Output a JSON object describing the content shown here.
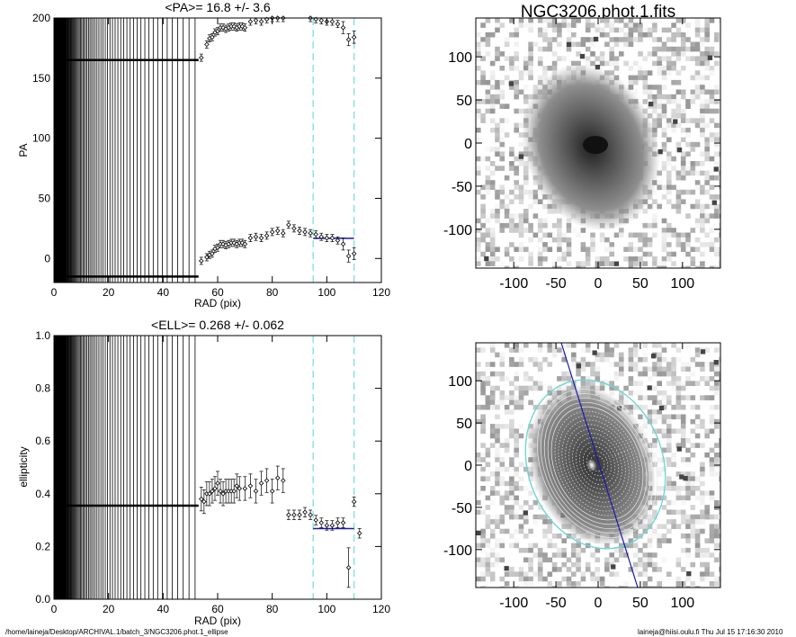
{
  "footer": {
    "path": "/home/laineja/Desktop/ARCHIVAL.1/batch_3/NGC3206.phot.1_ellipse",
    "user_date": "laineja@hiisi.oulu.fi  Thu Jul 15 17:16:30 2010"
  },
  "colors": {
    "fit_line": "#1a1aa8",
    "limit_line": "#7fe0d8",
    "ellipse": "#6fd6d6"
  },
  "chart_data": [
    {
      "type": "scatter",
      "title": "<PA>=  16.8 +/-   3.6",
      "xlabel": "RAD (pix)",
      "ylabel": "PA",
      "xlim": [
        0,
        120
      ],
      "ylim": [
        -20,
        200
      ],
      "xticks": [
        "0",
        "20",
        "40",
        "60",
        "80",
        "100",
        "120"
      ],
      "yticks": [
        "0",
        "50",
        "100",
        "150",
        "200"
      ],
      "mean_fit": {
        "y": 16.8,
        "x_range": [
          95,
          110
        ]
      },
      "limit_lines": [
        95,
        110
      ],
      "series": [
        {
          "points": [
            [
              54,
              -2
            ],
            [
              56,
              1
            ],
            [
              57,
              3
            ],
            [
              58,
              4
            ],
            [
              59,
              8
            ],
            [
              60,
              9
            ],
            [
              61,
              12
            ],
            [
              62,
              12
            ],
            [
              63,
              11
            ],
            [
              64,
              12
            ],
            [
              65,
              13
            ],
            [
              66,
              13
            ],
            [
              67,
              12
            ],
            [
              68,
              13
            ],
            [
              69,
              13
            ],
            [
              70,
              12
            ],
            [
              72,
              17
            ],
            [
              74,
              18
            ],
            [
              76,
              17
            ],
            [
              78,
              19
            ],
            [
              80,
              22
            ],
            [
              82,
              23
            ],
            [
              84,
              21
            ],
            [
              86,
              28
            ],
            [
              88,
              25
            ],
            [
              90,
              23
            ],
            [
              92,
              22
            ],
            [
              94,
              21
            ],
            [
              96,
              20
            ],
            [
              98,
              18
            ],
            [
              100,
              17
            ],
            [
              102,
              17
            ],
            [
              104,
              15
            ],
            [
              106,
              12
            ],
            [
              108,
              2
            ],
            [
              110,
              4
            ]
          ]
        },
        {
          "points": [
            [
              54,
              167
            ],
            [
              56,
              178
            ],
            [
              57,
              183
            ],
            [
              58,
              184
            ],
            [
              59,
              188
            ],
            [
              60,
              189
            ],
            [
              61,
              192
            ],
            [
              62,
              192
            ],
            [
              63,
              191
            ],
            [
              64,
              192
            ],
            [
              65,
              193
            ],
            [
              66,
              193
            ],
            [
              67,
              192
            ],
            [
              68,
              193
            ],
            [
              69,
              193
            ],
            [
              70,
              192
            ],
            [
              72,
              197
            ],
            [
              74,
              198
            ],
            [
              76,
              197
            ],
            [
              78,
              199
            ],
            [
              80,
              200
            ],
            [
              82,
              200
            ],
            [
              84,
              200
            ],
            [
              94,
              200
            ],
            [
              96,
              199
            ],
            [
              98,
              198
            ],
            [
              100,
              197
            ],
            [
              102,
              197
            ],
            [
              104,
              195
            ],
            [
              106,
              192
            ],
            [
              108,
              182
            ],
            [
              110,
              184
            ]
          ]
        }
      ]
    },
    {
      "type": "image",
      "title": "NGC3206.phot.1.fits",
      "xlim": [
        -145,
        145
      ],
      "ylim": [
        -145,
        145
      ],
      "xticks": [
        "-100",
        "-50",
        "0",
        "50",
        "100"
      ],
      "yticks": [
        "-100",
        "-50",
        "0",
        "50",
        "100"
      ]
    },
    {
      "type": "scatter",
      "title": "<ELL>= 0.268 +/-  0.062",
      "xlabel": "RAD (pix)",
      "ylabel": "ellipticity",
      "xlim": [
        0,
        120
      ],
      "ylim": [
        0,
        1
      ],
      "xticks": [
        "0",
        "20",
        "40",
        "60",
        "80",
        "100",
        "120"
      ],
      "yticks": [
        "0.0",
        "0.2",
        "0.4",
        "0.6",
        "0.8",
        "1.0"
      ],
      "mean_fit": {
        "y": 0.268,
        "x_range": [
          95,
          110
        ]
      },
      "limit_lines": [
        95,
        110
      ],
      "series": [
        {
          "points": [
            [
              54,
              0.38
            ],
            [
              55,
              0.37
            ],
            [
              56,
              0.4
            ],
            [
              57,
              0.4
            ],
            [
              58,
              0.41
            ],
            [
              59,
              0.42
            ],
            [
              60,
              0.44
            ],
            [
              61,
              0.41
            ],
            [
              62,
              0.4
            ],
            [
              63,
              0.41
            ],
            [
              64,
              0.41
            ],
            [
              65,
              0.41
            ],
            [
              66,
              0.41
            ],
            [
              67,
              0.43
            ],
            [
              68,
              0.42
            ],
            [
              70,
              0.42
            ],
            [
              72,
              0.43
            ],
            [
              74,
              0.41
            ],
            [
              76,
              0.44
            ],
            [
              78,
              0.45
            ],
            [
              80,
              0.41
            ],
            [
              82,
              0.46
            ],
            [
              84,
              0.45
            ],
            [
              86,
              0.32
            ],
            [
              88,
              0.32
            ],
            [
              90,
              0.32
            ],
            [
              92,
              0.33
            ],
            [
              94,
              0.32
            ],
            [
              96,
              0.3
            ],
            [
              98,
              0.29
            ],
            [
              100,
              0.28
            ],
            [
              102,
              0.28
            ],
            [
              104,
              0.29
            ],
            [
              106,
              0.29
            ],
            [
              108,
              0.12
            ],
            [
              110,
              0.37
            ],
            [
              112,
              0.25
            ]
          ]
        }
      ]
    },
    {
      "type": "image",
      "title": "",
      "xlim": [
        -145,
        145
      ],
      "ylim": [
        -145,
        145
      ],
      "xticks": [
        "-100",
        "-50",
        "0",
        "50",
        "100"
      ],
      "yticks": [
        "-100",
        "-50",
        "0",
        "50",
        "100"
      ]
    }
  ]
}
